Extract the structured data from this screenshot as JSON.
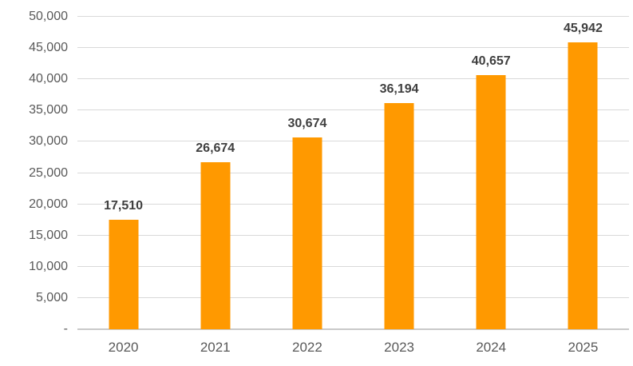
{
  "chart_data": {
    "type": "bar",
    "title": "",
    "xlabel": "",
    "ylabel": "",
    "categories": [
      "2020",
      "2021",
      "2022",
      "2023",
      "2024",
      "2025"
    ],
    "values": [
      17510,
      26674,
      30674,
      36194,
      40657,
      45942
    ],
    "value_labels": [
      "17,510",
      "26,674",
      "30,674",
      "36,194",
      "40,657",
      "45,942"
    ],
    "ylim": [
      0,
      50000
    ],
    "ytick_interval": 5000,
    "yticks": [
      {
        "value": 0,
        "label": "-"
      },
      {
        "value": 5000,
        "label": "5,000"
      },
      {
        "value": 10000,
        "label": "10,000"
      },
      {
        "value": 15000,
        "label": "15,000"
      },
      {
        "value": 20000,
        "label": "20,000"
      },
      {
        "value": 25000,
        "label": "25,000"
      },
      {
        "value": 30000,
        "label": "30,000"
      },
      {
        "value": 35000,
        "label": "35,000"
      },
      {
        "value": 40000,
        "label": "40,000"
      },
      {
        "value": 45000,
        "label": "45,000"
      },
      {
        "value": 50000,
        "label": "50,000"
      }
    ],
    "grid": true,
    "legend": "none",
    "colors": {
      "bar": "#FF9900",
      "gridline": "#D9D9D9",
      "axis_line": "#C9C9C9",
      "tick_label": "#595959",
      "x_label": "#595959",
      "data_label": "#3F3F3F",
      "background": "#FFFFFF"
    }
  }
}
